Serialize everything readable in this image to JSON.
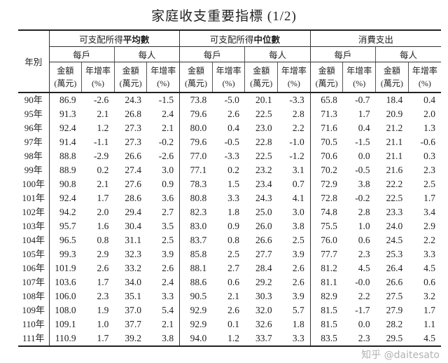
{
  "title": "家庭收支重要指標 (1/2)",
  "header": {
    "year_label": "年別",
    "groups": [
      {
        "prefix": "可支配所得",
        "bold": "平均數"
      },
      {
        "prefix": "可支配所得",
        "bold": "中位數"
      },
      {
        "prefix": "消費支出",
        "bold": ""
      }
    ],
    "sub": [
      "每戶",
      "每人",
      "每戶",
      "每人",
      "每戶",
      "每人"
    ],
    "amount_label": "金額",
    "amount_unit": "(萬元)",
    "growth_label": "年增率",
    "growth_unit": "(%)"
  },
  "rows": [
    [
      "90年",
      "86.9",
      "-2.6",
      "24.3",
      "-1.5",
      "73.8",
      "-5.0",
      "20.1",
      "-3.3",
      "65.8",
      "-0.7",
      "18.4",
      "0.4"
    ],
    [
      "95年",
      "91.3",
      "2.1",
      "26.8",
      "2.4",
      "79.6",
      "2.6",
      "22.5",
      "2.8",
      "71.3",
      "1.7",
      "20.9",
      "2.0"
    ],
    [
      "96年",
      "92.4",
      "1.2",
      "27.3",
      "2.1",
      "80.0",
      "0.4",
      "23.0",
      "2.2",
      "71.6",
      "0.4",
      "21.2",
      "1.3"
    ],
    [
      "97年",
      "91.4",
      "-1.1",
      "27.3",
      "-0.2",
      "79.6",
      "-0.5",
      "22.8",
      "-1.0",
      "70.5",
      "-1.5",
      "21.1",
      "-0.6"
    ],
    [
      "98年",
      "88.8",
      "-2.9",
      "26.6",
      "-2.6",
      "77.0",
      "-3.3",
      "22.5",
      "-1.2",
      "70.6",
      "0.0",
      "21.1",
      "0.3"
    ],
    [
      "99年",
      "88.9",
      "0.2",
      "27.4",
      "3.0",
      "77.1",
      "0.2",
      "23.2",
      "3.1",
      "70.2",
      "-0.5",
      "21.6",
      "2.3"
    ],
    [
      "100年",
      "90.8",
      "2.1",
      "27.6",
      "0.9",
      "78.3",
      "1.5",
      "23.4",
      "0.7",
      "72.9",
      "3.8",
      "22.2",
      "2.5"
    ],
    [
      "101年",
      "92.4",
      "1.7",
      "28.6",
      "3.6",
      "80.8",
      "3.3",
      "24.3",
      "4.1",
      "72.8",
      "-0.2",
      "22.5",
      "1.7"
    ],
    [
      "102年",
      "94.2",
      "2.0",
      "29.4",
      "2.7",
      "82.3",
      "1.8",
      "25.0",
      "3.0",
      "74.8",
      "2.8",
      "23.3",
      "3.4"
    ],
    [
      "103年",
      "95.7",
      "1.6",
      "30.4",
      "3.5",
      "83.0",
      "0.9",
      "26.0",
      "3.8",
      "75.5",
      "1.0",
      "24.0",
      "2.9"
    ],
    [
      "104年",
      "96.5",
      "0.8",
      "31.1",
      "2.5",
      "83.7",
      "0.8",
      "26.6",
      "2.5",
      "76.0",
      "0.6",
      "24.5",
      "2.2"
    ],
    [
      "105年",
      "99.3",
      "2.9",
      "32.3",
      "3.9",
      "85.8",
      "2.5",
      "27.7",
      "3.9",
      "77.7",
      "2.3",
      "25.3",
      "3.3"
    ],
    [
      "106年",
      "101.9",
      "2.6",
      "33.2",
      "2.6",
      "88.1",
      "2.7",
      "28.4",
      "2.6",
      "81.2",
      "4.5",
      "26.4",
      "4.5"
    ],
    [
      "107年",
      "103.6",
      "1.7",
      "34.0",
      "2.4",
      "88.6",
      "0.6",
      "29.2",
      "2.6",
      "81.1",
      "-0.0",
      "26.6",
      "0.6"
    ],
    [
      "108年",
      "106.0",
      "2.3",
      "35.1",
      "3.3",
      "90.5",
      "2.1",
      "30.3",
      "3.9",
      "82.9",
      "2.2",
      "27.5",
      "3.2"
    ],
    [
      "109年",
      "108.0",
      "1.9",
      "37.0",
      "5.4",
      "92.9",
      "2.6",
      "32.0",
      "5.7",
      "81.5",
      "-1.7",
      "27.9",
      "1.7"
    ],
    [
      "110年",
      "109.1",
      "1.0",
      "37.7",
      "2.1",
      "92.9",
      "0.1",
      "32.6",
      "1.8",
      "81.5",
      "0.0",
      "28.2",
      "1.1"
    ],
    [
      "111年",
      "110.9",
      "1.7",
      "39.2",
      "3.8",
      "94.0",
      "1.2",
      "33.7",
      "3.3",
      "83.5",
      "2.3",
      "29.5",
      "4.5"
    ]
  ],
  "watermark": "知乎 @daitesato"
}
